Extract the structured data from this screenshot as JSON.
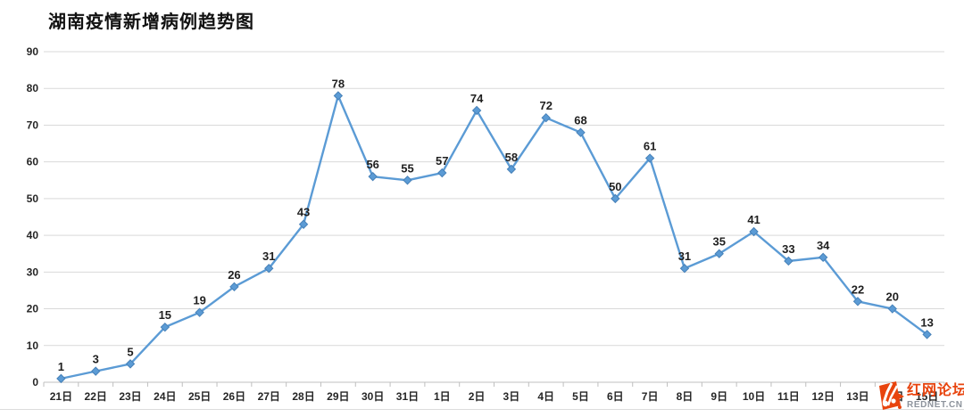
{
  "chart_data": {
    "type": "line",
    "title": "湖南疫情新增病例趋势图",
    "categories": [
      "21日",
      "22日",
      "23日",
      "24日",
      "25日",
      "26日",
      "27日",
      "28日",
      "29日",
      "30日",
      "31日",
      "1日",
      "2日",
      "3日",
      "4日",
      "5日",
      "6日",
      "7日",
      "8日",
      "9日",
      "10日",
      "11日",
      "12日",
      "13日",
      "14日",
      "15日"
    ],
    "values": [
      1,
      3,
      5,
      15,
      19,
      26,
      31,
      43,
      78,
      56,
      55,
      57,
      74,
      58,
      72,
      68,
      50,
      61,
      31,
      35,
      41,
      33,
      34,
      22,
      20,
      13
    ],
    "y_ticks": [
      0,
      10,
      20,
      30,
      40,
      50,
      60,
      70,
      80,
      90
    ],
    "ylim": [
      0,
      90
    ],
    "xlabel": "",
    "ylabel": "",
    "grid": "horizontal",
    "legend": "none",
    "data_labels": true,
    "marker": "diamond"
  },
  "colors": {
    "line": "#5B9BD5",
    "marker_fill": "#5B9BD5",
    "marker_stroke": "#4781B8",
    "gridline": "#D9D9D9",
    "axis_line": "#BFBFBF",
    "tick": "#BFBFBF",
    "axis_text": "#262626",
    "data_label_text": "#1F1F1F",
    "watermark_orange": "#E8440E",
    "watermark_gray": "#8D939C"
  },
  "watermark": {
    "site_name": "红网论坛",
    "site_url": "REDNET.CN"
  }
}
